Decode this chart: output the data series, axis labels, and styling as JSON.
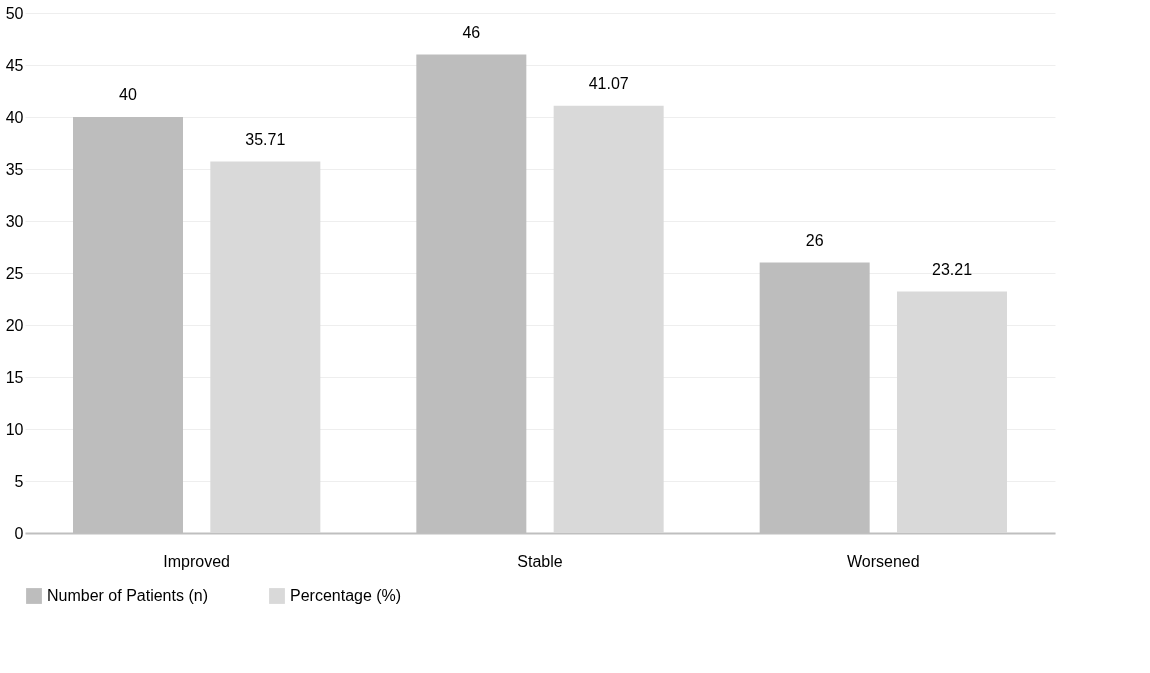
{
  "chart_data": {
    "type": "bar",
    "categories": [
      "Improved",
      "Stable",
      "Worsened"
    ],
    "series": [
      {
        "name": "Number of Patients (n)",
        "color": "#bdbdbd",
        "values": [
          40,
          46,
          26
        ]
      },
      {
        "name": "Percentage (%)",
        "color": "#d9d9d9",
        "values": [
          35.71,
          41.07,
          23.21
        ]
      }
    ],
    "ylim": [
      0,
      50
    ],
    "yticks": [
      0,
      5,
      10,
      15,
      20,
      25,
      30,
      35,
      40,
      45,
      50
    ],
    "grid": "y",
    "legend": "bottom",
    "data_labels": true
  }
}
